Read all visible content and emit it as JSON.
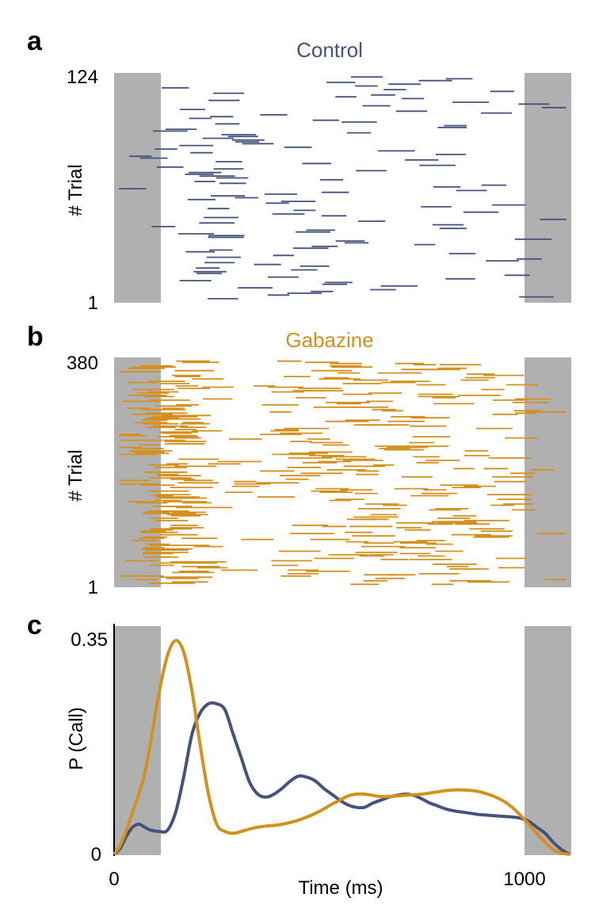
{
  "colors": {
    "control": "#46527e",
    "gabazine": "#d4901c",
    "shade": "#b0b0b0",
    "axis": "#000000"
  },
  "stimulus_shading_ms": [
    [
      0,
      110
    ],
    [
      1000,
      1110
    ]
  ],
  "chart_data": [
    {
      "panel": "a",
      "type": "raster",
      "title": "Control",
      "ylabel": "# Trial",
      "yticks": [
        "124",
        "1"
      ],
      "ylim": [
        1,
        124
      ],
      "xlim": [
        0,
        1110
      ],
      "series_name": "Control",
      "n_trials": 124
    },
    {
      "panel": "b",
      "type": "raster",
      "title": "Gabazine",
      "ylabel": "# Trial",
      "yticks": [
        "380",
        "1"
      ],
      "ylim": [
        1,
        380
      ],
      "xlim": [
        0,
        1110
      ],
      "series_name": "Gabazine",
      "n_trials": 380
    },
    {
      "panel": "c",
      "type": "line",
      "ylabel": "P (Call)",
      "xlabel": "Time (ms)",
      "yticks": [
        "0.35",
        "0"
      ],
      "xticks": [
        "0",
        "1000"
      ],
      "ylim": [
        0,
        0.35
      ],
      "xlim": [
        0,
        1110
      ],
      "series": [
        {
          "name": "Control",
          "x": [
            0,
            15,
            30,
            45,
            60,
            75,
            90,
            110,
            130,
            150,
            170,
            190,
            210,
            230,
            250,
            270,
            290,
            310,
            330,
            350,
            370,
            390,
            410,
            430,
            450,
            470,
            490,
            510,
            530,
            550,
            570,
            590,
            610,
            630,
            650,
            670,
            690,
            710,
            730,
            750,
            770,
            790,
            810,
            830,
            850,
            870,
            890,
            910,
            930,
            950,
            970,
            990,
            1010,
            1030,
            1050,
            1070,
            1090,
            1110
          ],
          "y": [
            0.0,
            0.01,
            0.03,
            0.045,
            0.05,
            0.045,
            0.04,
            0.038,
            0.04,
            0.07,
            0.13,
            0.2,
            0.235,
            0.25,
            0.25,
            0.24,
            0.2,
            0.16,
            0.12,
            0.1,
            0.095,
            0.1,
            0.11,
            0.122,
            0.13,
            0.128,
            0.122,
            0.11,
            0.1,
            0.09,
            0.082,
            0.078,
            0.078,
            0.085,
            0.09,
            0.095,
            0.098,
            0.1,
            0.098,
            0.092,
            0.085,
            0.08,
            0.075,
            0.072,
            0.07,
            0.068,
            0.066,
            0.065,
            0.064,
            0.063,
            0.062,
            0.06,
            0.055,
            0.045,
            0.035,
            0.02,
            0.008,
            0.0
          ]
        },
        {
          "name": "Gabazine",
          "x": [
            0,
            15,
            30,
            45,
            60,
            75,
            90,
            110,
            130,
            150,
            170,
            190,
            210,
            230,
            250,
            270,
            290,
            310,
            330,
            350,
            370,
            390,
            410,
            430,
            450,
            470,
            490,
            510,
            530,
            550,
            570,
            590,
            610,
            630,
            650,
            670,
            690,
            710,
            730,
            750,
            770,
            790,
            810,
            830,
            850,
            870,
            890,
            910,
            930,
            950,
            970,
            990,
            1010,
            1030,
            1050,
            1070,
            1090,
            1110
          ],
          "y": [
            0.0,
            0.015,
            0.04,
            0.07,
            0.1,
            0.135,
            0.19,
            0.27,
            0.33,
            0.355,
            0.335,
            0.27,
            0.18,
            0.1,
            0.05,
            0.038,
            0.035,
            0.038,
            0.042,
            0.045,
            0.047,
            0.048,
            0.05,
            0.053,
            0.057,
            0.062,
            0.068,
            0.075,
            0.083,
            0.09,
            0.097,
            0.1,
            0.1,
            0.098,
            0.096,
            0.096,
            0.097,
            0.098,
            0.099,
            0.1,
            0.102,
            0.104,
            0.106,
            0.107,
            0.107,
            0.106,
            0.104,
            0.1,
            0.095,
            0.088,
            0.078,
            0.065,
            0.05,
            0.035,
            0.02,
            0.008,
            0.002,
            0.0
          ]
        }
      ]
    }
  ],
  "labels": {
    "panel_a": "a",
    "panel_b": "b",
    "panel_c": "c"
  }
}
